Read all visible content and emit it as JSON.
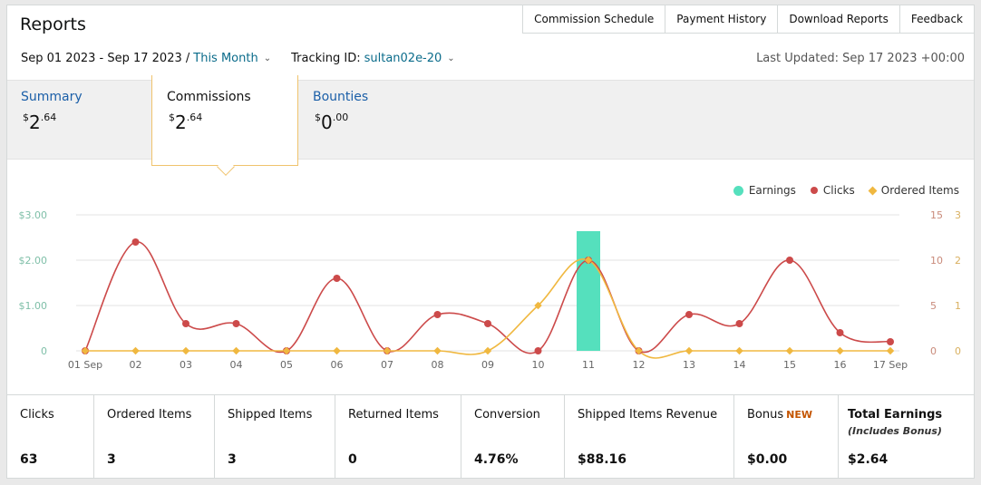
{
  "page": {
    "title": "Reports",
    "top_links": [
      "Commission Schedule",
      "Payment History",
      "Download Reports",
      "Feedback"
    ],
    "date_range": "Sep 01 2023 - Sep 17 2023 /",
    "date_preset": "This Month",
    "tracking_label": "Tracking ID:",
    "tracking_id": "sultan02e-20",
    "last_updated": "Last Updated: Sep 17 2023 +00:00"
  },
  "tabs": {
    "summary": {
      "label": "Summary",
      "currency": "$",
      "whole": "2",
      "cents": ".64"
    },
    "commissions": {
      "label": "Commissions",
      "currency": "$",
      "whole": "2",
      "cents": ".64"
    },
    "bounties": {
      "label": "Bounties",
      "currency": "$",
      "whole": "0",
      "cents": ".00"
    }
  },
  "legend": {
    "earnings": "Earnings",
    "clicks": "Clicks",
    "ordered": "Ordered Items"
  },
  "colors": {
    "earnings": "#55e0bd",
    "clicks": "#cc4a4a",
    "ordered": "#f0b840"
  },
  "chart_data": {
    "type": "line",
    "categories": [
      "01 Sep",
      "02",
      "03",
      "04",
      "05",
      "06",
      "07",
      "08",
      "09",
      "10",
      "11",
      "12",
      "13",
      "14",
      "15",
      "16",
      "17 Sep"
    ],
    "series": [
      {
        "name": "Earnings",
        "type": "bar",
        "axis": "left",
        "values": [
          0,
          0,
          0,
          0,
          0,
          0,
          0,
          0,
          0,
          0,
          2.64,
          0,
          0,
          0,
          0,
          0,
          0
        ]
      },
      {
        "name": "Clicks",
        "type": "line",
        "axis": "right-1",
        "values": [
          0,
          12,
          3,
          3,
          0,
          8,
          0,
          4,
          3,
          0,
          10,
          0,
          4,
          3,
          10,
          2,
          1
        ]
      },
      {
        "name": "Ordered Items",
        "type": "line",
        "axis": "right-2",
        "values": [
          0,
          0,
          0,
          0,
          0,
          0,
          0,
          0,
          0,
          1,
          2,
          0,
          0,
          0,
          0,
          0,
          0
        ]
      }
    ],
    "left_ticks": [
      "0",
      "$1.00",
      "$2.00",
      "$3.00"
    ],
    "left_ylim": [
      0,
      3
    ],
    "right1_ticks": [
      "0",
      "5",
      "10",
      "15"
    ],
    "right1_ylim": [
      0,
      15
    ],
    "right2_ticks": [
      "0",
      "1",
      "2",
      "3"
    ],
    "right2_ylim": [
      0,
      3
    ],
    "grid": true,
    "legend_position": "top-right"
  },
  "metrics": [
    {
      "label": "Clicks",
      "value": "63"
    },
    {
      "label": "Ordered Items",
      "value": "3"
    },
    {
      "label": "Shipped Items",
      "value": "3"
    },
    {
      "label": "Returned Items",
      "value": "0"
    },
    {
      "label": "Conversion",
      "value": "4.76%"
    },
    {
      "label": "Shipped Items Revenue",
      "value": "$88.16"
    },
    {
      "label": "Bonus",
      "badge": "NEW",
      "value": "$0.00"
    },
    {
      "label": "Total Earnings",
      "sub": "(Includes Bonus)",
      "value": "$2.64"
    }
  ]
}
